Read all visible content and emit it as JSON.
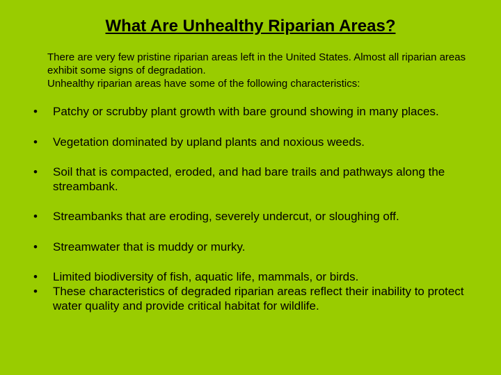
{
  "slide": {
    "background_color": "#99cc00",
    "text_color": "#000000",
    "title": "What Are Unhealthy Riparian Areas?",
    "title_fontsize": 24,
    "intro_fontsize": 15,
    "bullet_fontsize": 17,
    "intro_line1": "There are very few pristine riparian areas left in the United States. Almost all riparian areas exhibit some signs of degradation.",
    "intro_line2": "Unhealthy riparian areas have some of the following characteristics:",
    "bullets": [
      "Patchy or scrubby plant growth with bare ground showing in many places.",
      "Vegetation dominated by upland plants and noxious weeds.",
      "Soil that is compacted, eroded, and had bare trails and pathways along the streambank.",
      "Streambanks that are eroding, severely undercut, or sloughing off.",
      "Streamwater that is muddy or murky.",
      "Limited biodiversity of fish, aquatic life, mammals, or birds.",
      "These characteristics of degraded riparian areas reflect their inability to protect water quality and provide critical habitat for wildlife."
    ]
  }
}
